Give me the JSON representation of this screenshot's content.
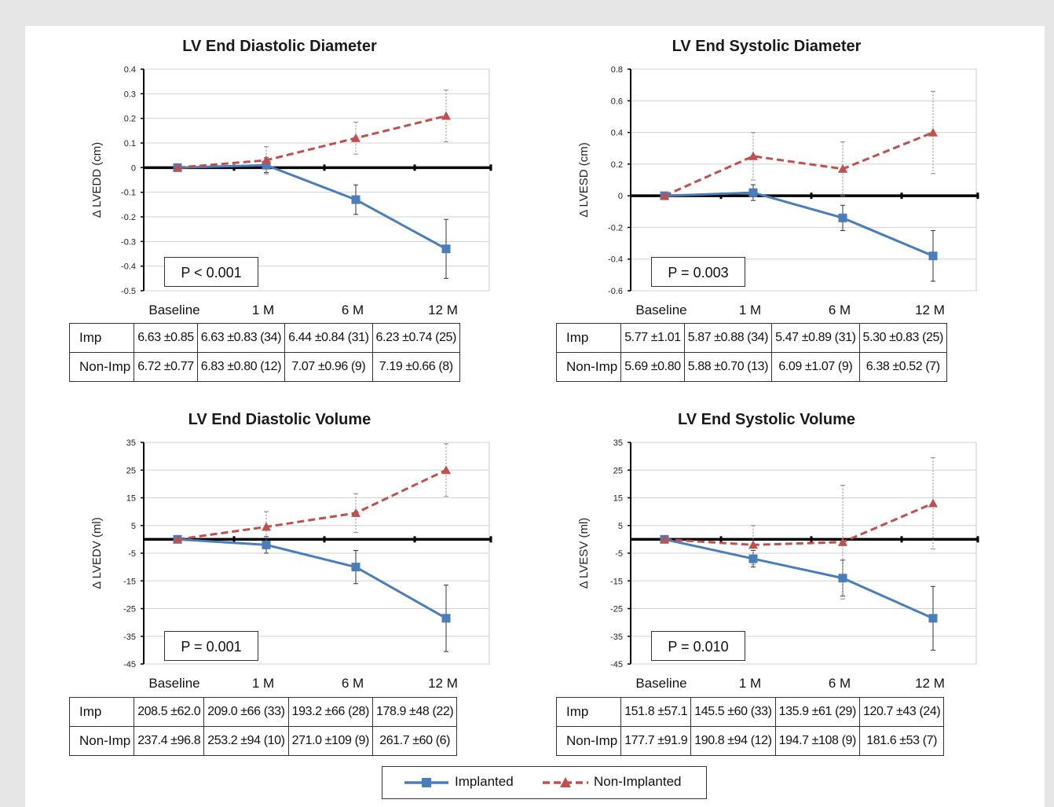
{
  "legend": {
    "implanted": "Implanted",
    "non_implanted": "Non-Implanted"
  },
  "colors": {
    "implanted": "#4a7ebb",
    "non_implanted": "#c0504d",
    "axis": "#000000",
    "grid": "#cccccc"
  },
  "chart_data": [
    {
      "type": "line",
      "title": "LV End Diastolic Diameter",
      "ylabel": "Δ LVEDD (cm)",
      "ylim": [
        -0.5,
        0.4
      ],
      "yticks": [
        0.4,
        0.3,
        0.2,
        0.1,
        0,
        -0.1,
        -0.2,
        -0.3,
        -0.4,
        -0.5
      ],
      "ytick_labels": [
        "0.4",
        "0.3",
        "0.2",
        "0.1",
        "0",
        "-0.1",
        "-0.2",
        "-0.3",
        "-0.4",
        "-0.5"
      ],
      "categories": [
        "Baseline",
        "1 M",
        "6 M",
        "12 M"
      ],
      "series": [
        {
          "name": "Implanted",
          "values": [
            0,
            0.01,
            -0.13,
            -0.33
          ],
          "error": [
            0,
            0.03,
            0.06,
            0.12
          ]
        },
        {
          "name": "Non-Implanted",
          "values": [
            0,
            0.03,
            0.12,
            0.21
          ],
          "error": [
            0,
            0.055,
            0.065,
            0.105
          ]
        }
      ],
      "p_value": "P < 0.001",
      "table": [
        {
          "label": "Imp",
          "cells": [
            "6.63 ±0.85",
            "6.63 ±0.83 (34)",
            "6.44 ±0.84 (31)",
            "6.23 ±0.74 (25)"
          ]
        },
        {
          "label": "Non-Imp",
          "cells": [
            "6.72 ±0.77",
            "6.83 ±0.80 (12)",
            "7.07 ±0.96 (9)",
            "7.19 ±0.66 (8)"
          ]
        }
      ]
    },
    {
      "type": "line",
      "title": "LV End Systolic Diameter",
      "ylabel": "Δ LVESD (cm)",
      "ylim": [
        -0.6,
        0.8
      ],
      "yticks": [
        0.8,
        0.6,
        0.4,
        0.2,
        0,
        -0.2,
        -0.4,
        -0.6
      ],
      "ytick_labels": [
        "0.8",
        "0.6",
        "0.4",
        "0.2",
        "0",
        "-0.2",
        "-0.4",
        "-0.6"
      ],
      "categories": [
        "Baseline",
        "1 M",
        "6 M",
        "12 M"
      ],
      "series": [
        {
          "name": "Implanted",
          "values": [
            0,
            0.02,
            -0.14,
            -0.38
          ],
          "error": [
            0,
            0.05,
            0.08,
            0.16
          ]
        },
        {
          "name": "Non-Implanted",
          "values": [
            0,
            0.25,
            0.17,
            0.4
          ],
          "error": [
            0,
            0.15,
            0.17,
            0.26
          ]
        }
      ],
      "p_value": "P = 0.003",
      "table": [
        {
          "label": "Imp",
          "cells": [
            "5.77 ±1.01",
            "5.87 ±0.88 (34)",
            "5.47 ±0.89 (31)",
            "5.30 ±0.83 (25)"
          ]
        },
        {
          "label": "Non-Imp",
          "cells": [
            "5.69 ±0.80",
            "5.88 ±0.70 (13)",
            "6.09 ±1.07 (9)",
            "6.38 ±0.52 (7)"
          ]
        }
      ]
    },
    {
      "type": "line",
      "title": "LV End Diastolic Volume",
      "ylabel": "Δ LVEDV (ml)",
      "ylim": [
        -45,
        35
      ],
      "yticks": [
        35,
        25,
        15,
        5,
        -5,
        -15,
        -25,
        -35,
        -45
      ],
      "ytick_labels": [
        "35",
        "25",
        "15",
        "5",
        "-5",
        "-15",
        "-25",
        "-35",
        "-45"
      ],
      "categories": [
        "Baseline",
        "1 M",
        "6 M",
        "12 M"
      ],
      "series": [
        {
          "name": "Implanted",
          "values": [
            0,
            -2,
            -10,
            -28.5
          ],
          "error": [
            0,
            3,
            6,
            12
          ]
        },
        {
          "name": "Non-Implanted",
          "values": [
            0,
            4.5,
            9.5,
            25
          ],
          "error": [
            0,
            5.5,
            7,
            9.5
          ]
        }
      ],
      "p_value": "P = 0.001",
      "table": [
        {
          "label": "Imp",
          "cells": [
            "208.5 ±62.0",
            "209.0 ±66 (33)",
            "193.2 ±66 (28)",
            "178.9 ±48 (22)"
          ]
        },
        {
          "label": "Non-Imp",
          "cells": [
            "237.4 ±96.8",
            "253.2 ±94 (10)",
            "271.0 ±109 (9)",
            "261.7 ±60 (6)"
          ]
        }
      ]
    },
    {
      "type": "line",
      "title": "LV End Systolic Volume",
      "ylabel": "Δ LVESV (ml)",
      "ylim": [
        -45,
        35
      ],
      "yticks": [
        35,
        25,
        15,
        5,
        -5,
        -15,
        -25,
        -35,
        -45
      ],
      "ytick_labels": [
        "35",
        "25",
        "15",
        "5",
        "-5",
        "-15",
        "-25",
        "-35",
        "-45"
      ],
      "categories": [
        "Baseline",
        "1 M",
        "6 M",
        "12 M"
      ],
      "series": [
        {
          "name": "Implanted",
          "values": [
            0,
            -7,
            -14,
            -28.5
          ],
          "error": [
            0,
            3,
            6.5,
            11.5
          ]
        },
        {
          "name": "Non-Implanted",
          "values": [
            0,
            -2,
            -1,
            13
          ],
          "error": [
            0,
            7,
            20.5,
            16.5
          ]
        }
      ],
      "p_value": "P = 0.010",
      "table": [
        {
          "label": "Imp",
          "cells": [
            "151.8 ±57.1",
            "145.5 ±60 (33)",
            "135.9 ±61 (29)",
            "120.7 ±43 (24)"
          ]
        },
        {
          "label": "Non-Imp",
          "cells": [
            "177.7 ±91.9",
            "190.8 ±94 (12)",
            "194.7 ±108 (9)",
            "181.6 ±53 (7)"
          ]
        }
      ]
    }
  ]
}
